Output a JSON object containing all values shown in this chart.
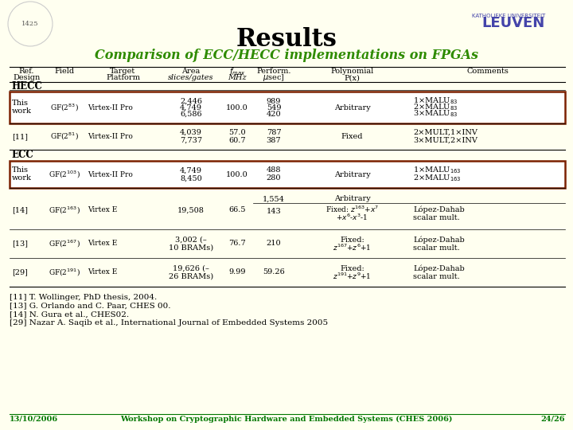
{
  "title": "Results",
  "subtitle": "Comparison of ECC/HECC implementations on FPGAs",
  "bg_color": "#FFFFF0",
  "title_color": "#000000",
  "subtitle_color": "#2E8B00",
  "leuven_color": "#4444AA",
  "leuven_small": "KATHOLIEKE UNIVERSITEIT",
  "leuven_big": "LEUVEN",
  "footer_left": "13/10/2006",
  "footer_center": "Workshop on Cryptographic Hardware and Embedded Systems (CHES 2006)",
  "footer_right": "24/26",
  "footer_color": "#007700",
  "highlight_color": "#7B2000",
  "refs": [
    "[11] T. Wollinger, PhD thesis, 2004.",
    "[13] G. Orlando and C. Paar, CHES 00.",
    "[14] N. Gura et al., CHES02.",
    "[29] Nazar A. Saqib et al., International Journal of Embedded Systems 2005"
  ]
}
